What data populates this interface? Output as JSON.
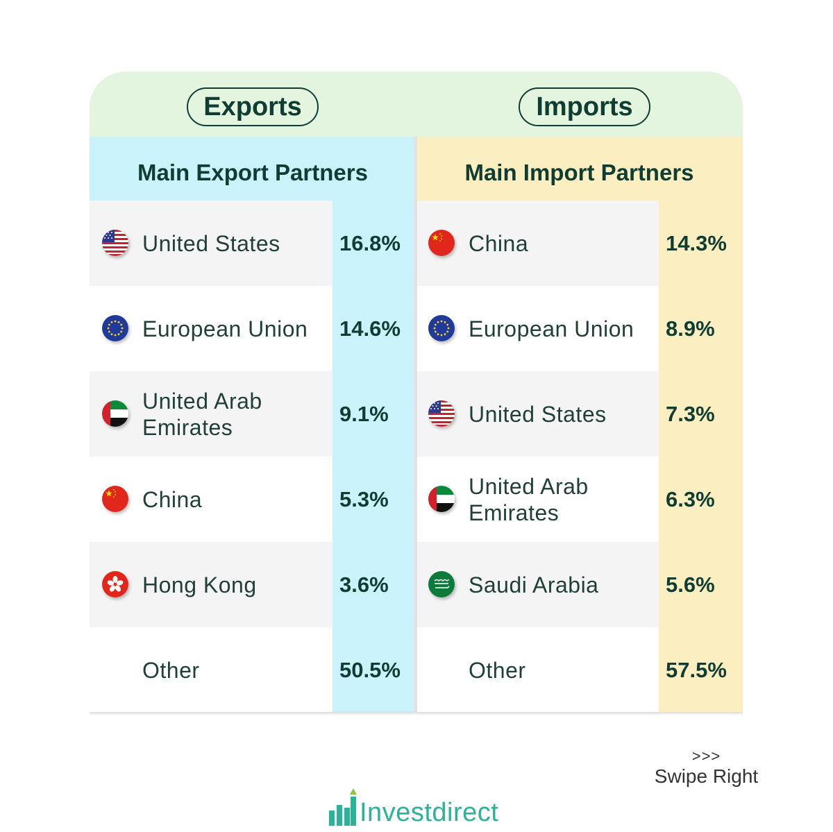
{
  "header": {
    "exports_label": "Exports",
    "imports_label": "Imports"
  },
  "exports": {
    "title": "Main Export Partners",
    "rows": [
      {
        "name": "United States",
        "pct": "16.8%",
        "flag": "us-flag-icon"
      },
      {
        "name": "European Union",
        "pct": "14.6%",
        "flag": "eu-flag-icon"
      },
      {
        "name": "United Arab Emirates",
        "pct": "9.1%",
        "flag": "uae-flag-icon"
      },
      {
        "name": "China",
        "pct": "5.3%",
        "flag": "china-flag-icon"
      },
      {
        "name": "Hong Kong",
        "pct": "3.6%",
        "flag": "hong-kong-flag-icon"
      },
      {
        "name": "Other",
        "pct": "50.5%",
        "flag": ""
      }
    ]
  },
  "imports": {
    "title": "Main Import Partners",
    "rows": [
      {
        "name": "China",
        "pct": "14.3%",
        "flag": "china-flag-icon"
      },
      {
        "name": "European Union",
        "pct": "8.9%",
        "flag": "eu-flag-icon"
      },
      {
        "name": "United States",
        "pct": "7.3%",
        "flag": "us-flag-icon"
      },
      {
        "name": "United Arab Emirates",
        "pct": "6.3%",
        "flag": "uae-flag-icon"
      },
      {
        "name": "Saudi Arabia",
        "pct": "5.6%",
        "flag": "saudi-arabia-flag-icon"
      },
      {
        "name": "Other",
        "pct": "57.5%",
        "flag": ""
      }
    ]
  },
  "footer": {
    "swipe_arrows": ">>>",
    "swipe_label": "Swipe Right",
    "brand": "Investdirect"
  },
  "colors": {
    "dark_green": "#0f3d33",
    "export_accent": "#c9f2fb",
    "import_accent": "#fbefc2",
    "header_band": "#e3f5df",
    "brand": "#2bb39a"
  }
}
